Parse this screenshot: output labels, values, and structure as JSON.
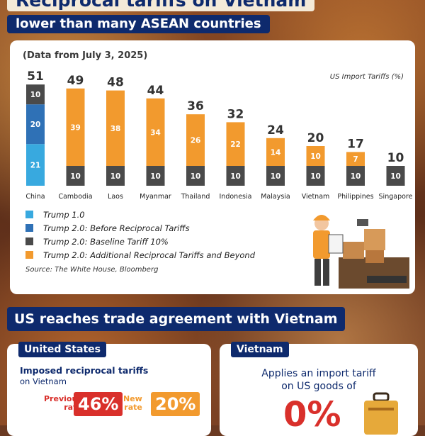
{
  "header": {
    "title": "Reciprocal tariffs on Vietnam",
    "subtitle": "lower than many ASEAN countries"
  },
  "chart_data": {
    "type": "bar",
    "stacked": true,
    "note": "(Data from July 3, 2025)",
    "ylabel": "US Import Tariffs (%)",
    "categories": [
      "China",
      "Cambodia",
      "Laos",
      "Myanmar",
      "Thailand",
      "Indonesia",
      "Malaysia",
      "Vietnam",
      "Philippines",
      "Singapore"
    ],
    "totals": [
      51,
      49,
      48,
      44,
      36,
      32,
      24,
      20,
      17,
      10
    ],
    "series": [
      {
        "name": "Trump 1.0",
        "color": "#38a9df",
        "values": [
          21,
          0,
          0,
          0,
          0,
          0,
          0,
          0,
          0,
          0
        ]
      },
      {
        "name": "Trump 2.0: Before Reciprocal Tariffs",
        "color": "#2f71b6",
        "values": [
          20,
          0,
          0,
          0,
          0,
          0,
          0,
          0,
          0,
          0
        ]
      },
      {
        "name": "Trump 2.0: Baseline Tariff 10%",
        "color": "#4a4a4a",
        "values": [
          10,
          10,
          10,
          10,
          10,
          10,
          10,
          10,
          10,
          10
        ]
      },
      {
        "name": "Trump 2.0: Additional Reciprocal Tariffs and Beyond",
        "color": "#f29a2e",
        "values": [
          0,
          39,
          38,
          34,
          26,
          22,
          14,
          10,
          7,
          0
        ]
      }
    ],
    "source": "Source: The White House, Bloomberg"
  },
  "trade": {
    "title": "US reaches trade agreement with Vietnam",
    "us": {
      "tab": "United States",
      "imposed_title": "Imposed reciprocal tariffs",
      "imposed_sub": "on Vietnam",
      "previous_label_1": "Previous",
      "previous_label_2": "rate",
      "previous_value": "46%",
      "new_label_1": "New",
      "new_label_2": "rate",
      "new_value": "20%"
    },
    "vietnam": {
      "tab": "Vietnam",
      "line1": "Applies an import tariff",
      "line2": "on US goods of",
      "value": "0%"
    }
  }
}
